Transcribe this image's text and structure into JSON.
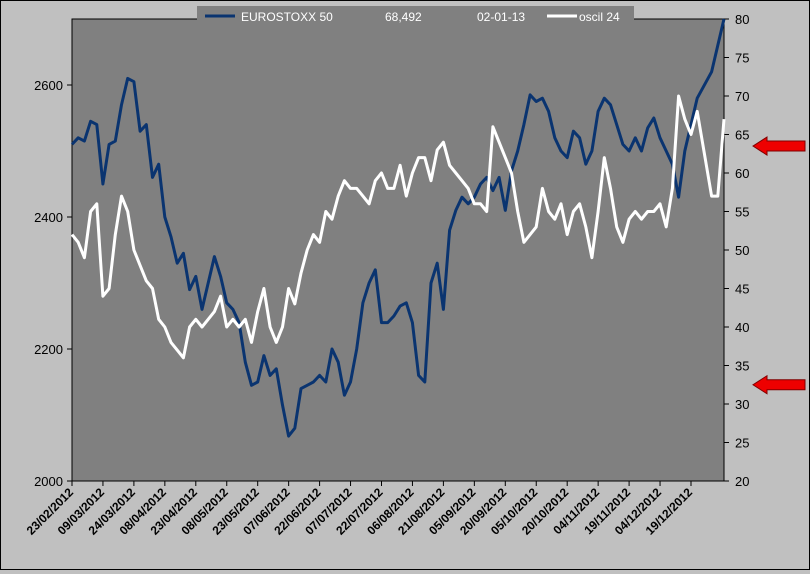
{
  "chart_data": {
    "type": "line",
    "title": "",
    "legend": {
      "placement": "top-center",
      "series_label": "EUROSTOXX 50",
      "last_value": "68,492",
      "date": "02-01-13",
      "oscillator_label": "oscil 24"
    },
    "x_tick_labels": [
      "23/02/2012",
      "09/03/2012",
      "24/03/2012",
      "08/04/2012",
      "23/04/2012",
      "08/05/2012",
      "23/05/2012",
      "07/06/2012",
      "22/06/2012",
      "07/07/2012",
      "22/07/2012",
      "06/08/2012",
      "21/08/2012",
      "05/09/2012",
      "20/09/2012",
      "05/10/2012",
      "20/10/2012",
      "04/11/2012",
      "19/11/2012",
      "04/12/2012",
      "19/12/2012"
    ],
    "y_left": {
      "ylim": [
        2000,
        2700
      ],
      "ticks": [
        "2000",
        "2200",
        "2400",
        "2600"
      ]
    },
    "y_right": {
      "ylim": [
        20,
        80
      ],
      "ticks": [
        "20",
        "25",
        "30",
        "35",
        "40",
        "45",
        "50",
        "55",
        "60",
        "65",
        "70",
        "75",
        "80"
      ]
    },
    "grid": false,
    "plot_background": "#808080",
    "series": [
      {
        "name": "EUROSTOXX 50",
        "axis": "left",
        "color": "#0a3470",
        "days": [
          0,
          3,
          6,
          9,
          12,
          15,
          18,
          21,
          24,
          27,
          30,
          33,
          36,
          39,
          42,
          45,
          48,
          51,
          54,
          57,
          60,
          63,
          66,
          69,
          72,
          75,
          78,
          81,
          84,
          87,
          90,
          93,
          96,
          99,
          102,
          105,
          108,
          111,
          114,
          117,
          120,
          123,
          126,
          129,
          132,
          135,
          138,
          141,
          144,
          147,
          150,
          153,
          156,
          159,
          162,
          165,
          168,
          171,
          174,
          177,
          180,
          183,
          186,
          189,
          192,
          195,
          198,
          201,
          204,
          207,
          210,
          213,
          216,
          219,
          222,
          225,
          228,
          231,
          234,
          237,
          240,
          243,
          246,
          249,
          252,
          255,
          258,
          261,
          264,
          267,
          270,
          273,
          276,
          279,
          282,
          285,
          288,
          291,
          294,
          297,
          300,
          303,
          310,
          313,
          316
        ],
        "values": [
          2510,
          2520,
          2515,
          2545,
          2540,
          2450,
          2510,
          2515,
          2570,
          2610,
          2605,
          2530,
          2540,
          2460,
          2480,
          2400,
          2370,
          2330,
          2345,
          2290,
          2310,
          2260,
          2300,
          2340,
          2310,
          2270,
          2260,
          2240,
          2180,
          2145,
          2150,
          2190,
          2160,
          2170,
          2115,
          2068,
          2080,
          2140,
          2145,
          2150,
          2160,
          2150,
          2200,
          2180,
          2130,
          2150,
          2200,
          2270,
          2300,
          2320,
          2240,
          2240,
          2250,
          2265,
          2270,
          2240,
          2160,
          2150,
          2300,
          2330,
          2260,
          2380,
          2410,
          2430,
          2420,
          2430,
          2450,
          2460,
          2440,
          2460,
          2410,
          2470,
          2500,
          2540,
          2585,
          2575,
          2580,
          2560,
          2520,
          2500,
          2490,
          2530,
          2520,
          2480,
          2500,
          2560,
          2580,
          2570,
          2540,
          2510,
          2500,
          2520,
          2500,
          2535,
          2550,
          2520,
          2500,
          2480,
          2430,
          2500,
          2540,
          2580,
          2620,
          2660,
          2700
        ],
        "note": "",
        "_": ""
      },
      {
        "name": "oscil 24",
        "axis": "right",
        "color": "#ffffff",
        "days": [
          0,
          3,
          6,
          9,
          12,
          15,
          18,
          21,
          24,
          27,
          30,
          33,
          36,
          39,
          42,
          45,
          48,
          51,
          54,
          57,
          60,
          63,
          66,
          69,
          72,
          75,
          78,
          81,
          84,
          87,
          90,
          93,
          96,
          99,
          102,
          105,
          108,
          111,
          114,
          117,
          120,
          123,
          126,
          129,
          132,
          135,
          138,
          141,
          144,
          147,
          150,
          153,
          156,
          159,
          162,
          165,
          168,
          171,
          174,
          177,
          180,
          183,
          186,
          189,
          192,
          195,
          198,
          201,
          204,
          207,
          210,
          213,
          216,
          219,
          222,
          225,
          228,
          231,
          234,
          237,
          240,
          243,
          246,
          249,
          252,
          255,
          258,
          261,
          264,
          267,
          270,
          273,
          276,
          279,
          282,
          285,
          288,
          291,
          294,
          297,
          300,
          303,
          310,
          313,
          316
        ],
        "values": [
          52,
          51,
          49,
          55,
          56,
          44,
          45,
          52,
          57,
          55,
          50,
          48,
          46,
          45,
          41,
          40,
          38,
          37,
          36,
          40,
          41,
          40,
          41,
          42,
          44,
          40,
          41,
          40,
          41,
          38,
          42,
          45,
          40,
          38,
          40,
          45,
          43,
          47,
          50,
          52,
          51,
          55,
          54,
          57,
          59,
          58,
          58,
          57,
          56,
          59,
          60,
          58,
          58,
          61,
          57,
          60,
          62,
          62,
          59,
          63,
          64,
          61,
          60,
          59,
          58,
          56,
          56,
          55,
          66,
          64,
          62,
          60,
          55,
          51,
          52,
          53,
          58,
          55,
          54,
          56,
          52,
          55,
          56,
          53,
          49,
          55,
          62,
          58,
          53,
          51,
          54,
          55,
          54,
          55,
          55,
          56,
          53,
          58,
          70,
          67,
          65,
          68,
          57,
          57,
          67
        ],
        "note": "",
        "_": ""
      }
    ]
  },
  "markers": {
    "arrow_color": "#ee0000",
    "arrow_right_axis_values": [
      63.5,
      32.5
    ]
  }
}
